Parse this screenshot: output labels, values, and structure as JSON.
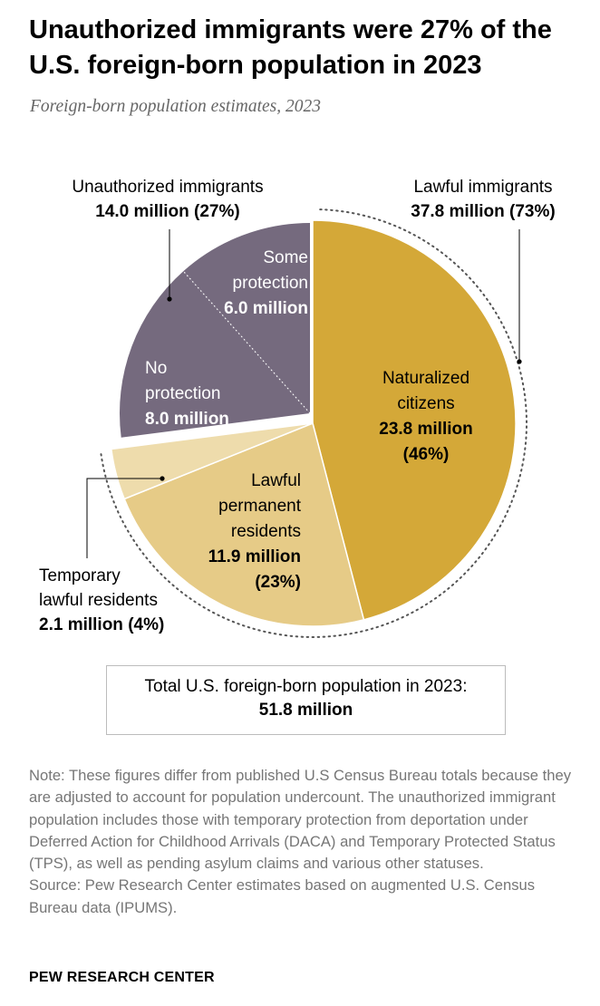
{
  "title": "Unauthorized immigrants were 27% of the U.S. foreign-born population in 2023",
  "subtitle": "Foreign-born population estimates, 2023",
  "chart_data": {
    "type": "pie",
    "unit": "million",
    "groups": [
      {
        "name": "Lawful immigrants",
        "label": "Lawful immigrants",
        "value_text": "37.8 million (73%)",
        "value": 37.8,
        "percent": 73
      },
      {
        "name": "Unauthorized immigrants",
        "label": "Unauthorized immigrants",
        "value_text": "14.0 million (27%)",
        "value": 14.0,
        "percent": 27
      }
    ],
    "slices": [
      {
        "key": "naturalized",
        "group": "Lawful immigrants",
        "label_lines": [
          "Naturalized",
          "citizens"
        ],
        "value_lines": [
          "23.8 million",
          "(46%)"
        ],
        "value": 23.8,
        "percent": 46,
        "color": "#D4A838",
        "text_color": "#000000"
      },
      {
        "key": "lpr",
        "group": "Lawful immigrants",
        "label_lines": [
          "Lawful",
          "permanent",
          "residents"
        ],
        "value_lines": [
          "11.9 million",
          "(23%)"
        ],
        "value": 11.9,
        "percent": 23,
        "color": "#E6CB87",
        "text_color": "#000000"
      },
      {
        "key": "temporary",
        "group": "Lawful immigrants",
        "label_lines": [
          "Temporary",
          "lawful residents"
        ],
        "value_lines": [
          "2.1 million (4%)"
        ],
        "value": 2.1,
        "percent": 4,
        "color": "#EEDCAC",
        "text_color": "#000000"
      },
      {
        "key": "no_protection",
        "group": "Unauthorized immigrants",
        "label_lines": [
          "No",
          "protection"
        ],
        "value_lines": [
          "8.0 million"
        ],
        "value": 8.0,
        "color": "#756A7E",
        "text_color": "#ffffff"
      },
      {
        "key": "some_protection",
        "group": "Unauthorized immigrants",
        "label_lines": [
          "Some",
          "protection"
        ],
        "value_lines": [
          "6.0 million"
        ],
        "value": 6.0,
        "color": "#756A7E",
        "text_color": "#ffffff"
      }
    ],
    "total_label": "Total U.S. foreign-born population in 2023:",
    "total_value": "51.8 million",
    "total": 51.8
  },
  "note": {
    "note_text": "Note: These figures differ from published U.S Census Bureau totals because they are adjusted to account for population undercount. The unauthorized immigrant population includes those with temporary protection from deportation under Deferred Action for Childhood Arrivals (DACA) and Temporary Protected Status (TPS), as well as pending asylum claims and various other statuses.",
    "source_text": "Source: Pew Research Center estimates based on augmented U.S. Census Bureau data (IPUMS)."
  },
  "brand": "PEW RESEARCH CENTER"
}
